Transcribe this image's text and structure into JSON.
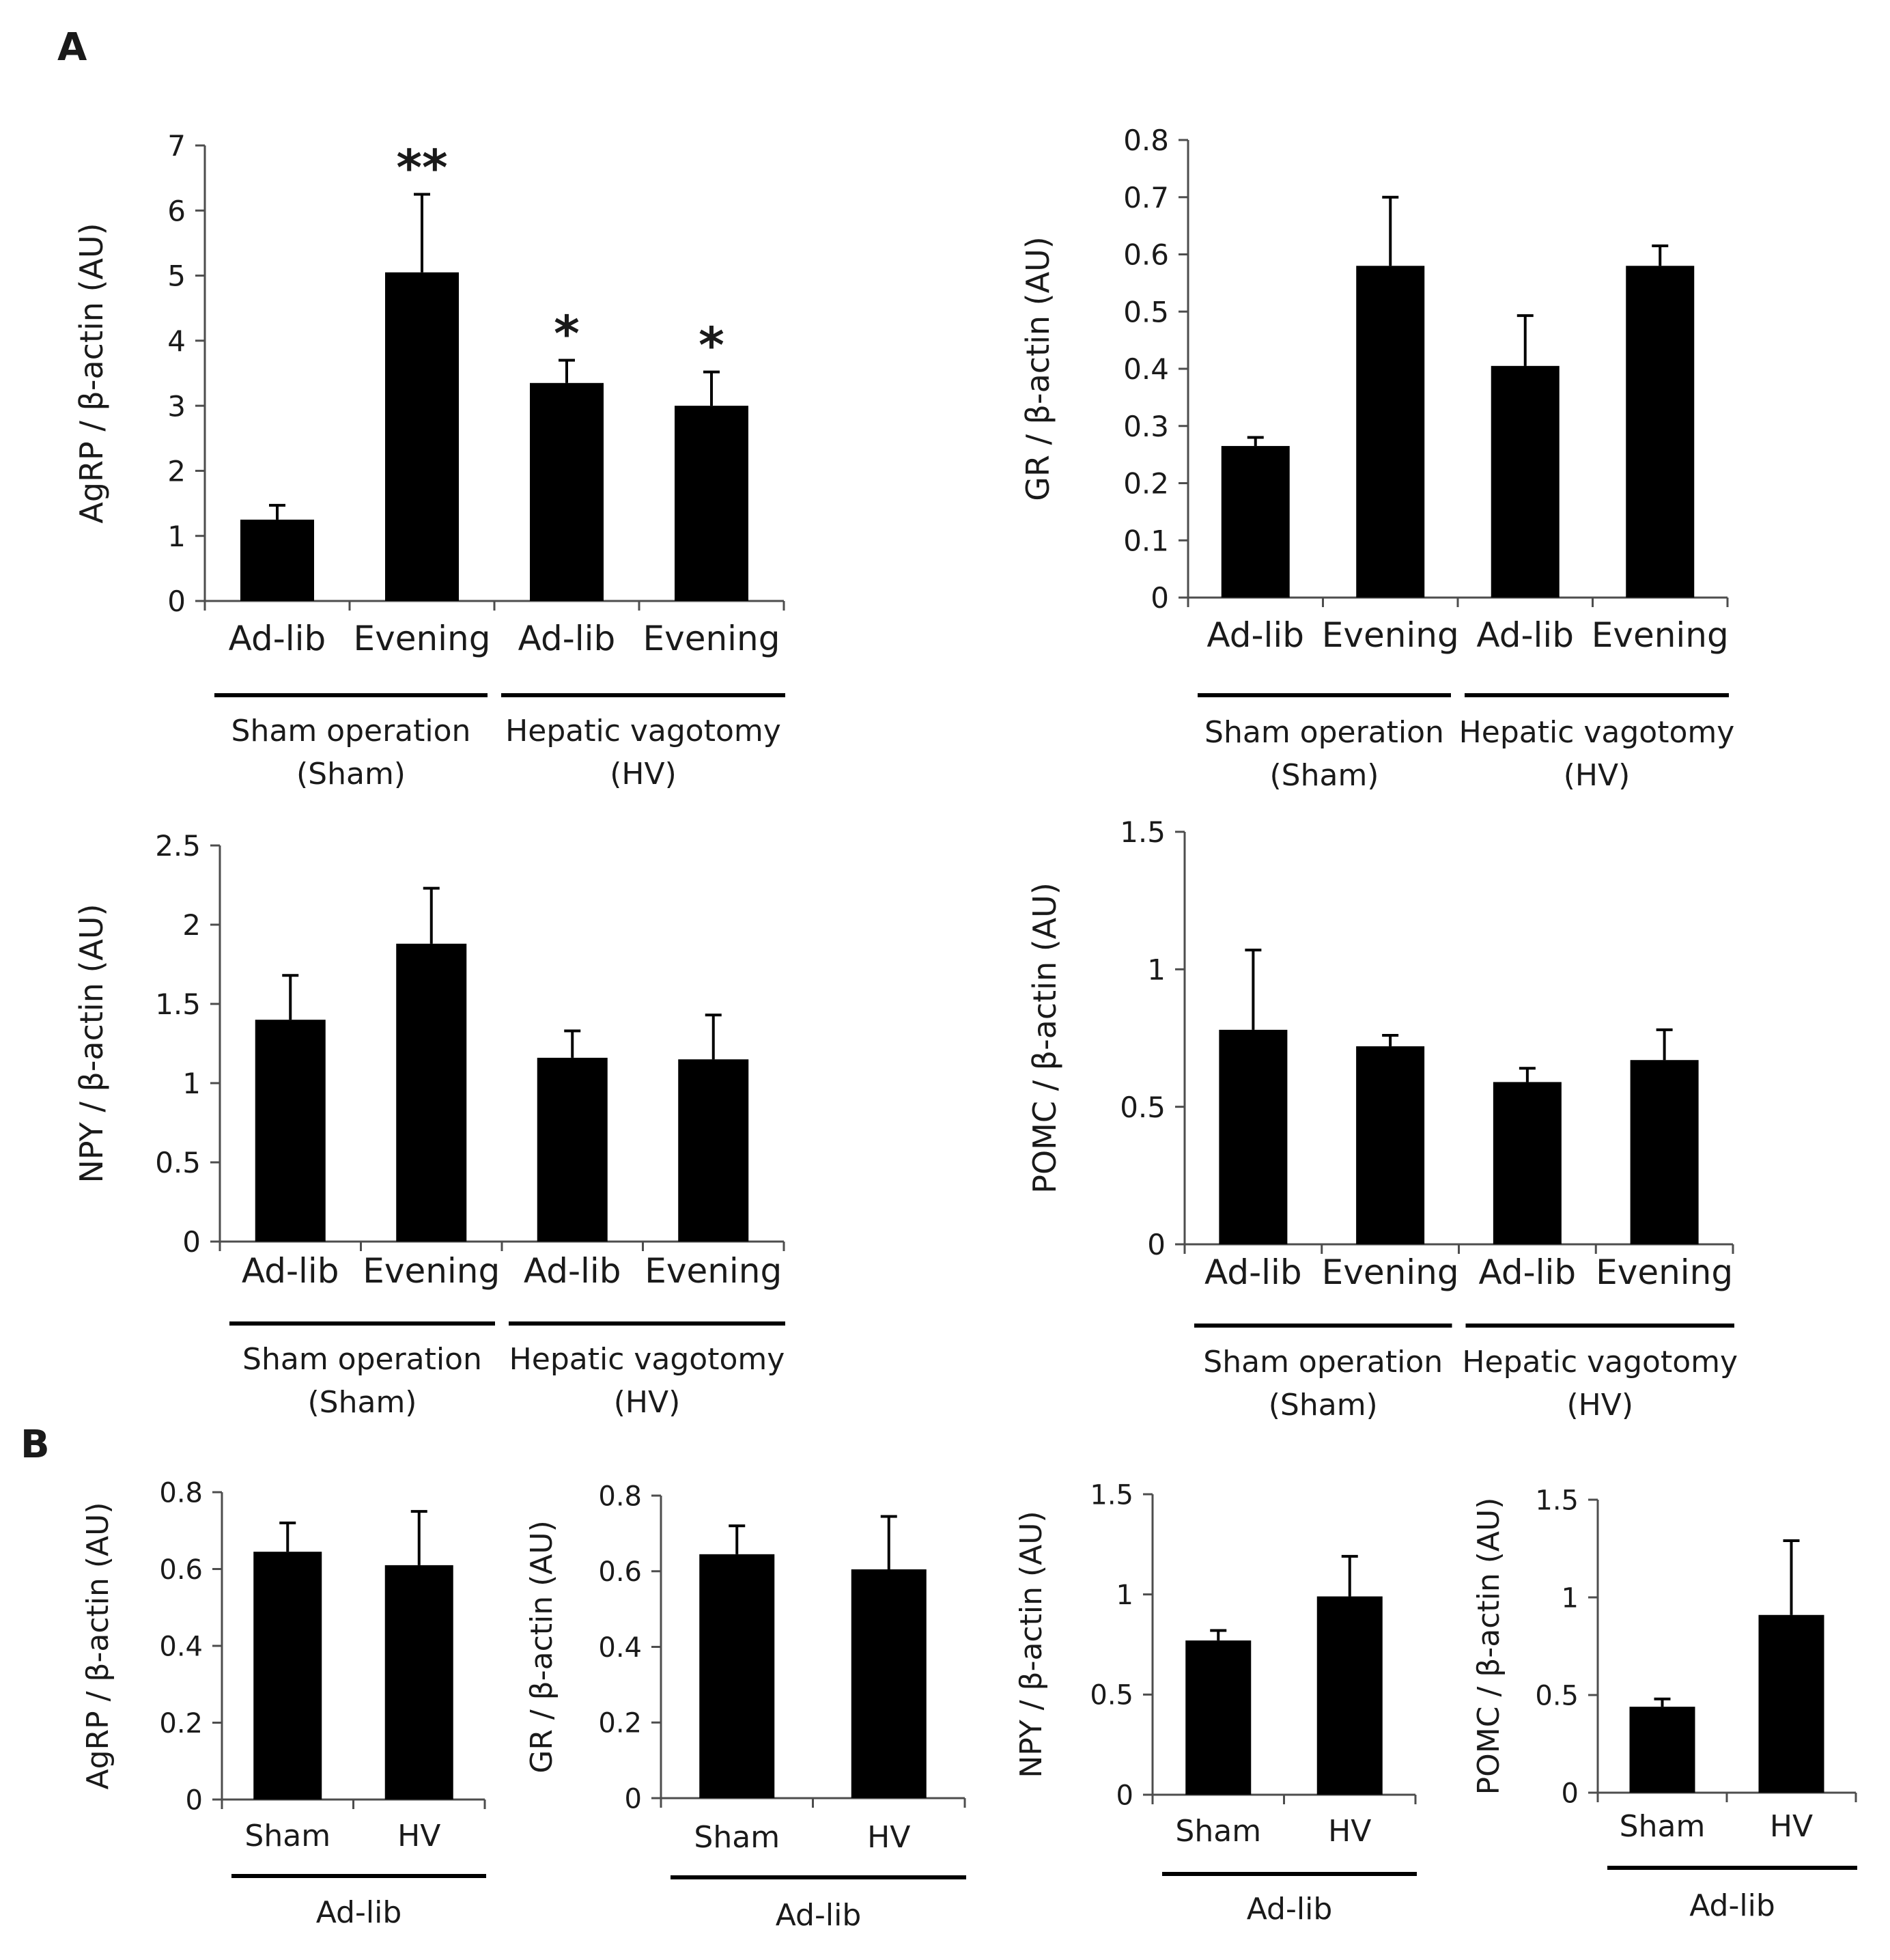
{
  "panels": [
    {
      "letter": "A"
    },
    {
      "letter": "B"
    }
  ],
  "colors": {
    "bar": "#000000",
    "axis": "#4d4d4d",
    "text": "#1a1a1a"
  },
  "chart_data": [
    {
      "id": "A1",
      "type": "bar",
      "panel": "A",
      "ylabel": "AgRP / β-actin (AU)",
      "ylim": [
        0,
        7
      ],
      "yticks": [
        0,
        1,
        2,
        3,
        4,
        5,
        6,
        7
      ],
      "ytick_labels": [
        "0",
        "1",
        "2",
        "3",
        "4",
        "5",
        "6",
        "7"
      ],
      "categories": [
        "Ad-lib",
        "Evening",
        "Ad-lib",
        "Evening"
      ],
      "values": [
        1.25,
        5.05,
        3.35,
        3.0
      ],
      "errors": [
        0.22,
        1.2,
        0.35,
        0.52
      ],
      "significance": [
        "",
        "**",
        "*",
        "*"
      ],
      "groups": [
        {
          "name": "Sham operation",
          "sub": "(Sham)"
        },
        {
          "name": "Hepatic vagotomy",
          "sub": "(HV)"
        }
      ]
    },
    {
      "id": "A2",
      "type": "bar",
      "panel": "A",
      "ylabel": "GR / β-actin (AU)",
      "ylim": [
        0,
        0.8
      ],
      "yticks": [
        0,
        0.1,
        0.2,
        0.3,
        0.4,
        0.5,
        0.6,
        0.7,
        0.8
      ],
      "ytick_labels": [
        "0",
        "0.1",
        "0.2",
        "0.3",
        "0.4",
        "0.5",
        "0.6",
        "0.7",
        "0.8"
      ],
      "categories": [
        "Ad-lib",
        "Evening",
        "Ad-lib",
        "Evening"
      ],
      "values": [
        0.265,
        0.58,
        0.405,
        0.58
      ],
      "errors": [
        0.015,
        0.12,
        0.088,
        0.035
      ],
      "significance": [
        "",
        "",
        "",
        ""
      ],
      "groups": [
        {
          "name": "Sham operation",
          "sub": "(Sham)"
        },
        {
          "name": "Hepatic vagotomy",
          "sub": "(HV)"
        }
      ]
    },
    {
      "id": "A3",
      "type": "bar",
      "panel": "A",
      "ylabel": "NPY / β-actin (AU)",
      "ylim": [
        0,
        2.5
      ],
      "yticks": [
        0,
        0.5,
        1,
        1.5,
        2,
        2.5
      ],
      "ytick_labels": [
        "0",
        "0.5",
        "1",
        "1.5",
        "2",
        "2.5"
      ],
      "categories": [
        "Ad-lib",
        "Evening",
        "Ad-lib",
        "Evening"
      ],
      "values": [
        1.4,
        1.88,
        1.16,
        1.15
      ],
      "errors": [
        0.28,
        0.35,
        0.17,
        0.28
      ],
      "significance": [
        "",
        "",
        "",
        ""
      ],
      "groups": [
        {
          "name": "Sham operation",
          "sub": "(Sham)"
        },
        {
          "name": "Hepatic vagotomy",
          "sub": "(HV)"
        }
      ]
    },
    {
      "id": "A4",
      "type": "bar",
      "panel": "A",
      "ylabel": "POMC / β-actin (AU)",
      "ylim": [
        0,
        1.5
      ],
      "yticks": [
        0,
        0.5,
        1,
        1.5
      ],
      "ytick_labels": [
        "0",
        "0.5",
        "1",
        "1.5"
      ],
      "categories": [
        "Ad-lib",
        "Evening",
        "Ad-lib",
        "Evening"
      ],
      "values": [
        0.78,
        0.72,
        0.59,
        0.67
      ],
      "errors": [
        0.29,
        0.04,
        0.05,
        0.11
      ],
      "significance": [
        "",
        "",
        "",
        ""
      ],
      "groups": [
        {
          "name": "Sham operation",
          "sub": "(Sham)"
        },
        {
          "name": "Hepatic vagotomy",
          "sub": "(HV)"
        }
      ]
    },
    {
      "id": "B1",
      "type": "bar",
      "panel": "B",
      "ylabel": "AgRP / β-actin (AU)",
      "ylim": [
        0,
        0.8
      ],
      "yticks": [
        0,
        0.2,
        0.4,
        0.6,
        0.8
      ],
      "ytick_labels": [
        "0",
        "0.2",
        "0.4",
        "0.6",
        "0.8"
      ],
      "categories": [
        "Sham",
        "HV"
      ],
      "values": [
        0.645,
        0.61
      ],
      "errors": [
        0.075,
        0.14
      ],
      "significance": [
        "",
        ""
      ],
      "groups": [
        {
          "name": "Ad-lib"
        }
      ]
    },
    {
      "id": "B2",
      "type": "bar",
      "panel": "B",
      "ylabel": "GR / β-actin (AU)",
      "ylim": [
        0,
        0.8
      ],
      "yticks": [
        0,
        0.2,
        0.4,
        0.6,
        0.8
      ],
      "ytick_labels": [
        "0",
        "0.2",
        "0.4",
        "0.6",
        "0.8"
      ],
      "categories": [
        "Sham",
        "HV"
      ],
      "values": [
        0.645,
        0.605
      ],
      "errors": [
        0.075,
        0.14
      ],
      "significance": [
        "",
        ""
      ],
      "groups": [
        {
          "name": "Ad-lib"
        }
      ]
    },
    {
      "id": "B3",
      "type": "bar",
      "panel": "B",
      "ylabel": "NPY / β-actin (AU)",
      "ylim": [
        0,
        1.5
      ],
      "yticks": [
        0,
        0.5,
        1,
        1.5
      ],
      "ytick_labels": [
        "0",
        "0.5",
        "1",
        "1.5"
      ],
      "categories": [
        "Sham",
        "HV"
      ],
      "values": [
        0.77,
        0.99
      ],
      "errors": [
        0.05,
        0.2
      ],
      "significance": [
        "",
        ""
      ],
      "groups": [
        {
          "name": "Ad-lib"
        }
      ]
    },
    {
      "id": "B4",
      "type": "bar",
      "panel": "B",
      "ylabel": "POMC / β-actin (AU)",
      "ylim": [
        0,
        1.5
      ],
      "yticks": [
        0,
        0.5,
        1,
        1.5
      ],
      "ytick_labels": [
        "0",
        "0.5",
        "1",
        "1.5"
      ],
      "categories": [
        "Sham",
        "HV"
      ],
      "values": [
        0.44,
        0.91
      ],
      "errors": [
        0.04,
        0.38
      ],
      "significance": [
        "",
        ""
      ],
      "groups": [
        {
          "name": "Ad-lib"
        }
      ]
    }
  ]
}
